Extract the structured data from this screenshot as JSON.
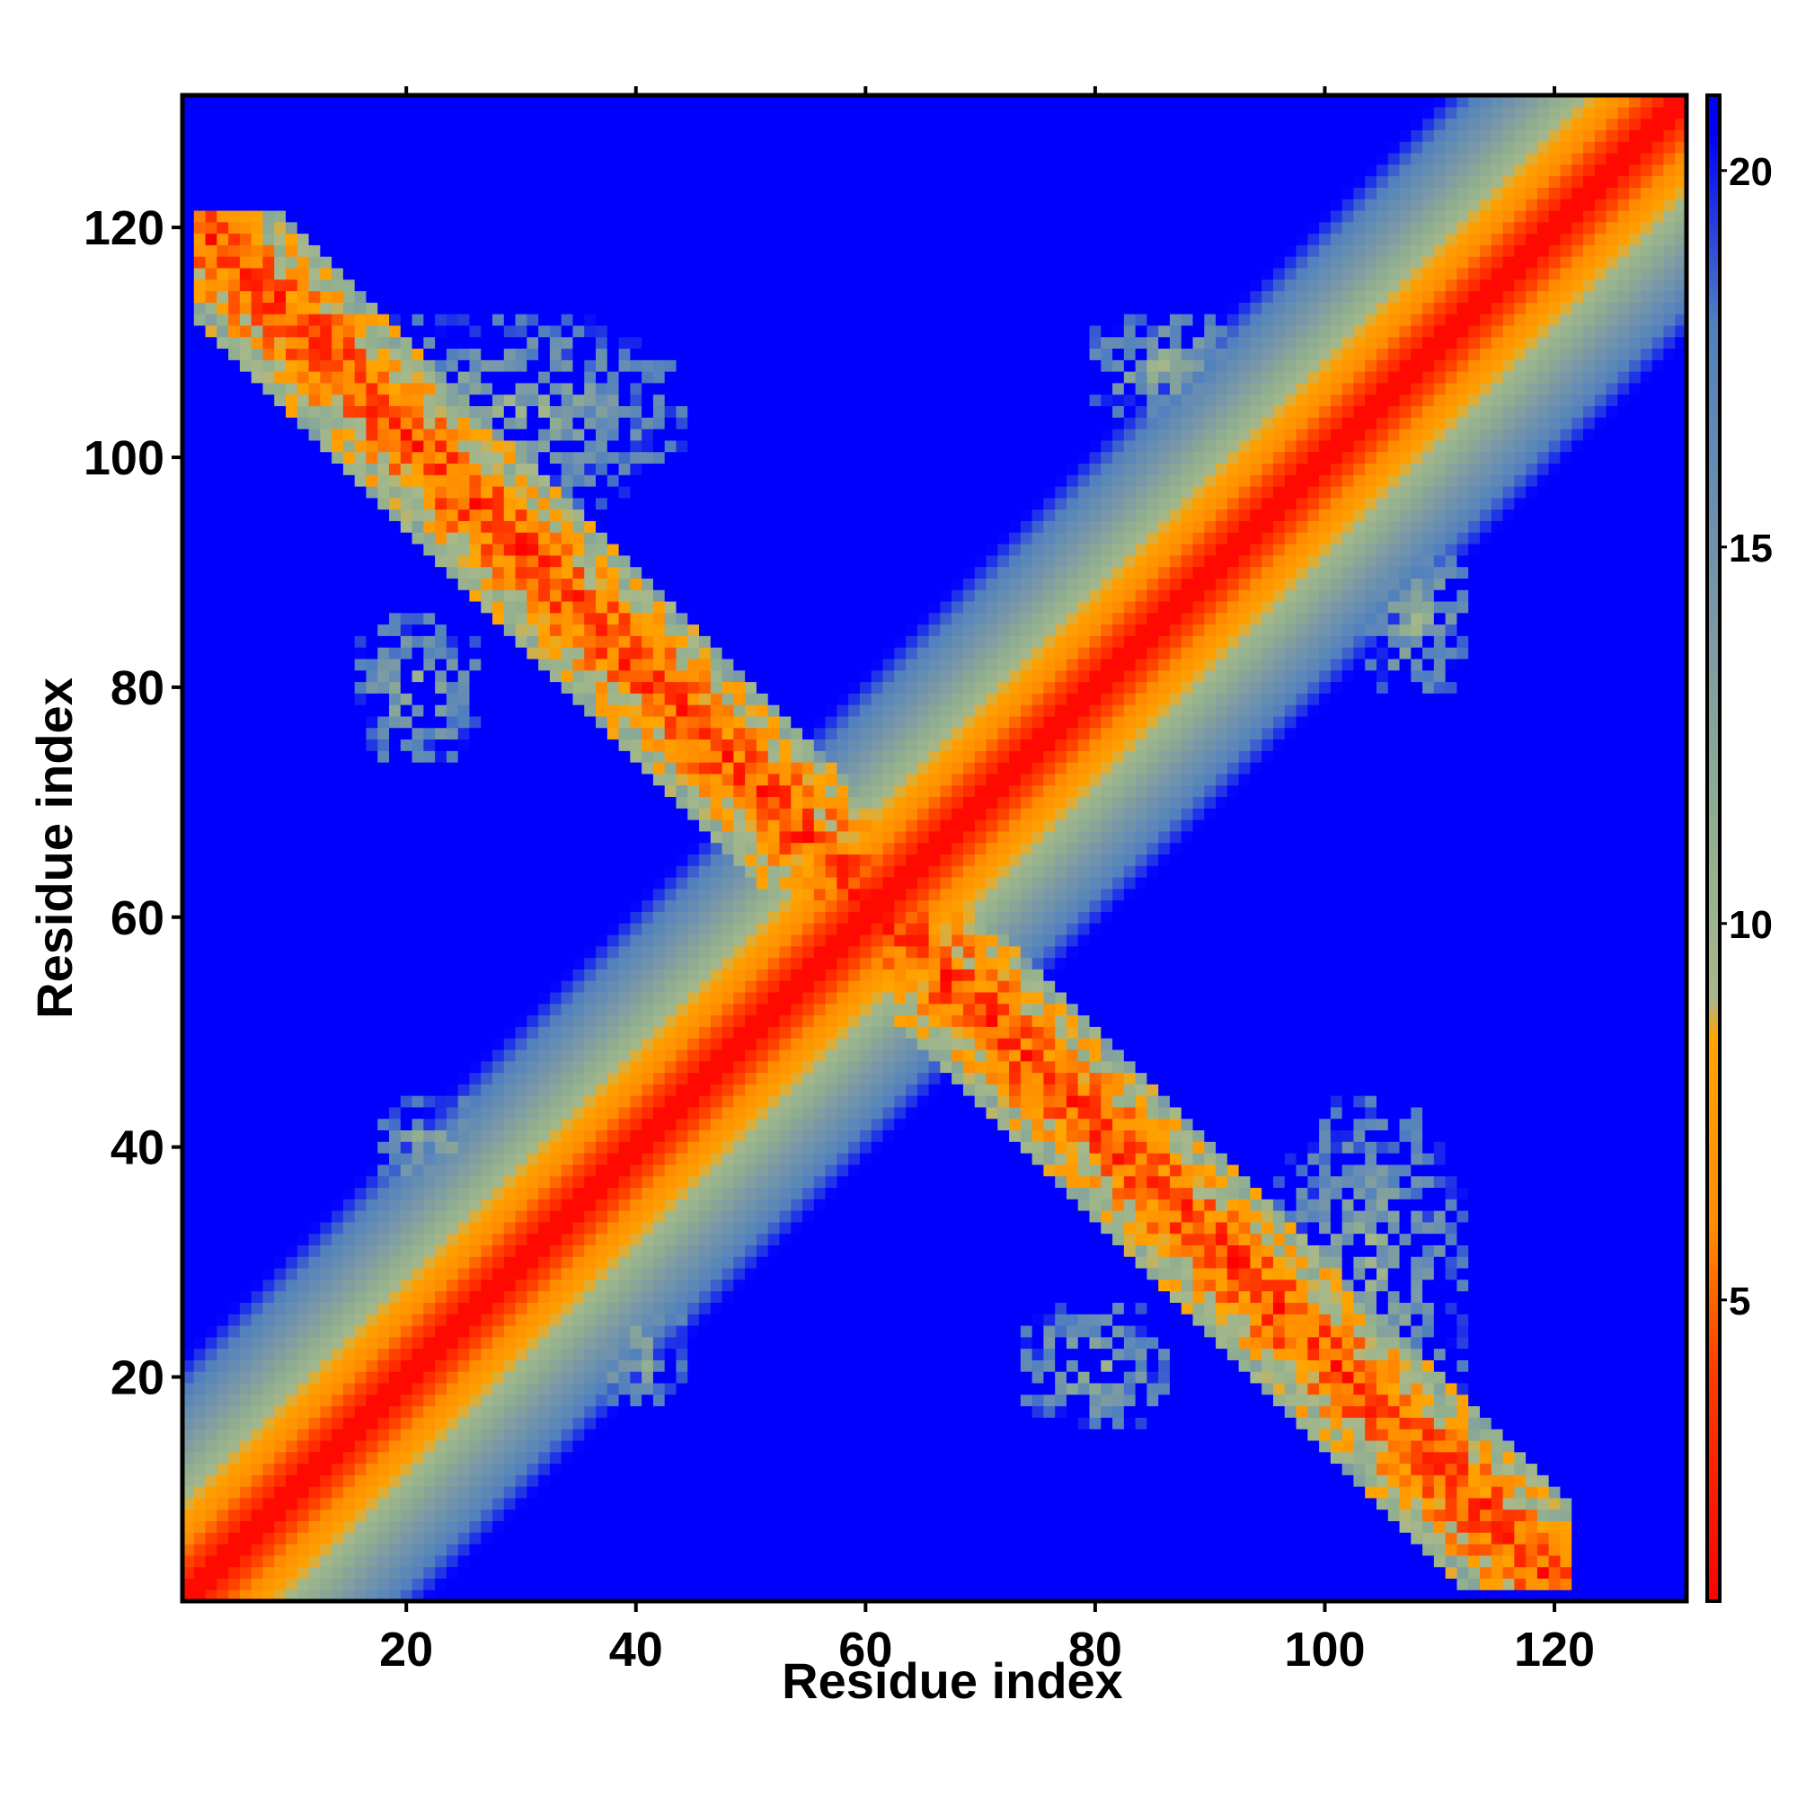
{
  "chart_data": {
    "type": "heatmap",
    "title": "",
    "xlabel": "Residue index",
    "ylabel": "Residue index",
    "n_residues": 131,
    "xlim": [
      1,
      131
    ],
    "ylim": [
      1,
      131
    ],
    "x_ticks": [
      "20",
      "40",
      "60",
      "80",
      "100",
      "120"
    ],
    "y_ticks": [
      "20",
      "40",
      "60",
      "80",
      "100",
      "120"
    ],
    "colorbar": {
      "range": [
        1,
        21
      ],
      "ticks": [
        "5",
        "10",
        "15",
        "20"
      ],
      "stops": [
        {
          "value": 1,
          "color": "#ff0000"
        },
        {
          "value": 4,
          "color": "#ff3a00"
        },
        {
          "value": 6,
          "color": "#ff8c00"
        },
        {
          "value": 8.5,
          "color": "#ffa500"
        },
        {
          "value": 9,
          "color": "#a8b88a"
        },
        {
          "value": 11,
          "color": "#93b08e"
        },
        {
          "value": 14,
          "color": "#7a99a6"
        },
        {
          "value": 18,
          "color": "#4f7fc0"
        },
        {
          "value": 20.5,
          "color": "#0000ff"
        },
        {
          "value": 21,
          "color": "#0000ff"
        }
      ]
    },
    "background_color": "#0000ff",
    "structure": {
      "main_diagonal": "distance increases with |i - j|; red (<4) within ~2 residues, orange within ~5, green/grey-blue within ~12",
      "antidiagonal_contact_band": "i + j ≈ 122 (hairpin-like contacts spanning residues 2–120)",
      "side_contact_lobes": [
        {
          "center_residues": [
            20,
            38
          ],
          "mirror": [
            38,
            20
          ]
        },
        {
          "center_residues": [
            40,
            106
          ],
          "mirror": [
            106,
            40
          ]
        },
        {
          "center_residues": [
            20,
            80
          ],
          "mirror": [
            80,
            20
          ]
        },
        {
          "center_residues": [
            85,
            108
          ],
          "mirror": [
            108,
            85
          ]
        }
      ]
    }
  }
}
